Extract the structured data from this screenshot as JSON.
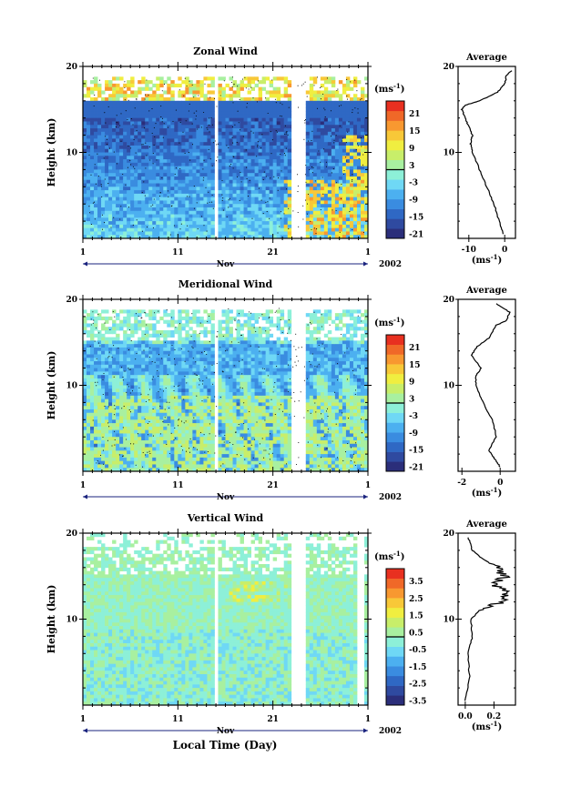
{
  "figure": {
    "common_xlabel": "Local Time (Day)",
    "month_label": "Nov",
    "year_label": "2002",
    "x_ticks": [
      "1",
      "11",
      "21",
      "1"
    ],
    "y_ticks": [
      "20",
      "10"
    ],
    "ylabel": "Height (km)",
    "unit_main": "(ms",
    "unit_exp": "-1",
    "unit_close": ")",
    "avg_title": "Average",
    "palette": [
      "#2b2e7a",
      "#2f4aa0",
      "#2f68c4",
      "#3a8ce0",
      "#4cb0f0",
      "#6fd8f5",
      "#8df0d8",
      "#a8f0a0",
      "#c8ee6a",
      "#f0ee40",
      "#f8c838",
      "#f89830",
      "#f06828",
      "#e83020"
    ]
  },
  "chart_data": [
    {
      "type": "heatmap",
      "title": "Zonal Wind",
      "xlabel": "Local Time (Day)",
      "ylabel": "Height (km)",
      "x_range": [
        "Nov 1 2002",
        "Dec 1 2002"
      ],
      "ylim": [
        0,
        20
      ],
      "colorbar_ticks": [
        "21",
        "15",
        "9",
        "3",
        "-3",
        "-9",
        "-15",
        "-21"
      ],
      "average_profile": {
        "title": "Average",
        "xlabel": "(ms-1)",
        "x_ticks": [
          "-10",
          "0"
        ],
        "xlim": [
          -13,
          3
        ],
        "points": [
          [
            -0.5,
            0.5
          ],
          [
            -1.5,
            2
          ],
          [
            -3,
            4
          ],
          [
            -5,
            6
          ],
          [
            -7,
            8
          ],
          [
            -9,
            10
          ],
          [
            -9.5,
            11
          ],
          [
            -9,
            12
          ],
          [
            -10,
            13
          ],
          [
            -11,
            14
          ],
          [
            -12,
            15
          ],
          [
            -11,
            15.5
          ],
          [
            -7,
            16
          ],
          [
            -2,
            17
          ],
          [
            0,
            18
          ],
          [
            0.5,
            19
          ],
          [
            2,
            19.5
          ]
        ]
      }
    },
    {
      "type": "heatmap",
      "title": "Meridional Wind",
      "xlabel": "Local Time (Day)",
      "ylabel": "Height (km)",
      "x_range": [
        "Nov 1 2002",
        "Dec 1 2002"
      ],
      "ylim": [
        0,
        20
      ],
      "colorbar_ticks": [
        "21",
        "15",
        "9",
        "3",
        "-3",
        "-9",
        "-15",
        "-21"
      ],
      "average_profile": {
        "title": "Average",
        "xlabel": "(ms-1)",
        "x_ticks": [
          "-2",
          "0"
        ],
        "xlim": [
          -2.2,
          0.8
        ],
        "points": [
          [
            0,
            0.5
          ],
          [
            -0.3,
            1.5
          ],
          [
            -0.6,
            2.5
          ],
          [
            -0.2,
            4
          ],
          [
            -0.4,
            6
          ],
          [
            -0.9,
            8
          ],
          [
            -1.2,
            9.5
          ],
          [
            -1.3,
            11
          ],
          [
            -1.0,
            12
          ],
          [
            -1.5,
            13.5
          ],
          [
            -1.2,
            14.5
          ],
          [
            -0.6,
            15.5
          ],
          [
            -0.2,
            17
          ],
          [
            0.3,
            17.5
          ],
          [
            0.5,
            18.5
          ],
          [
            -0.2,
            19.5
          ]
        ]
      }
    },
    {
      "type": "heatmap",
      "title": "Vertical Wind",
      "xlabel": "Local Time (Day)",
      "ylabel": "Height (km)",
      "x_range": [
        "Nov 1 2002",
        "Dec 1 2002"
      ],
      "ylim": [
        0,
        20
      ],
      "colorbar_ticks": [
        "3.5",
        "2.5",
        "1.5",
        "0.5",
        "-0.5",
        "-1.5",
        "-2.5",
        "-3.5"
      ],
      "average_profile": {
        "title": "Average",
        "xlabel": "(ms-1)",
        "x_ticks": [
          "0.0",
          "0.2"
        ],
        "xlim": [
          -0.05,
          0.35
        ],
        "points": [
          [
            0.0,
            0.5
          ],
          [
            0.03,
            3
          ],
          [
            0.02,
            6
          ],
          [
            0.05,
            8
          ],
          [
            0.04,
            10
          ],
          [
            0.1,
            11
          ],
          [
            0.25,
            12
          ],
          [
            0.3,
            13
          ],
          [
            0.2,
            14
          ],
          [
            0.28,
            15
          ],
          [
            0.22,
            16
          ],
          [
            0.12,
            17
          ],
          [
            0.05,
            18
          ],
          [
            0.02,
            19.5
          ]
        ]
      }
    }
  ]
}
